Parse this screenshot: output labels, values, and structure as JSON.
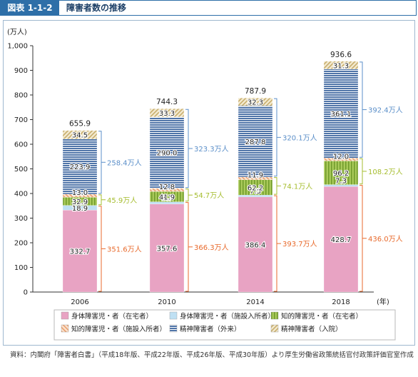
{
  "header": {
    "badge": "図表 1-1-2",
    "title": "障害者数の推移"
  },
  "colors": {
    "physical_home": "#e8a3c3",
    "physical_facility": "#bfe0f3",
    "intellectual_home": "#8fb640",
    "intellectual_facility": "#e8a070",
    "mental_outpatient": "#4f74a8",
    "mental_inpatient": "#d7c28e",
    "bracket_physical": "#e86a2c",
    "bracket_intellectual": "#a6bd2f",
    "bracket_mental": "#5b8fc9"
  },
  "chart_data": {
    "type": "bar",
    "stacked": true,
    "unit_label": "(万人)",
    "year_label": "(年)",
    "categories": [
      "2006",
      "2010",
      "2014",
      "2018"
    ],
    "ylim": [
      0,
      1000
    ],
    "yticks": [
      "0",
      "100",
      "200",
      "300",
      "400",
      "500",
      "600",
      "700",
      "800",
      "900",
      "1,000"
    ],
    "series": [
      {
        "key": "physical_home",
        "name": "身体障害児・者（在宅者）",
        "values": [
          332.7,
          357.6,
          386.4,
          428.7
        ],
        "labels": [
          "332.7",
          "357.6",
          "386.4",
          "428.7"
        ]
      },
      {
        "key": "physical_facility",
        "name": "身体障害児・者（施設入所者）",
        "values": [
          18.9,
          8.7,
          7.3,
          7.3
        ],
        "labels": [
          "18.9",
          "8.7",
          "7.3",
          "7.3"
        ]
      },
      {
        "key": "intellectual_home",
        "name": "知的障害児・者（在宅者）",
        "values": [
          32.9,
          41.9,
          62.2,
          96.2
        ],
        "labels": [
          "32.9",
          "41.9",
          "62.2",
          "96.2"
        ]
      },
      {
        "key": "intellectual_facility",
        "name": "知的障害児・者（施設入所者）",
        "values": [
          13.0,
          12.8,
          11.9,
          12.0
        ],
        "labels": [
          "13.0",
          "12.8",
          "11.9",
          "12.0"
        ]
      },
      {
        "key": "mental_outpatient",
        "name": "精神障害者（外来）",
        "values": [
          223.9,
          290.0,
          287.8,
          361.1
        ],
        "labels": [
          "223.9",
          "290.0",
          "287.8",
          "361.1"
        ]
      },
      {
        "key": "mental_inpatient",
        "name": "精神障害者（入院）",
        "values": [
          34.5,
          33.3,
          32.3,
          31.3
        ],
        "labels": [
          "34.5",
          "33.3",
          "32.3",
          "31.3"
        ]
      }
    ],
    "totals": [
      "655.9",
      "744.3",
      "787.9",
      "936.6"
    ],
    "group_totals": {
      "physical": [
        "351.6万人",
        "366.3万人",
        "393.7万人",
        "436.0万人"
      ],
      "intellectual": [
        "45.9万人",
        "54.7万人",
        "74.1万人",
        "108.2万人"
      ],
      "mental": [
        "258.4万人",
        "323.3万人",
        "320.1万人",
        "392.4万人"
      ]
    },
    "legend_position": "bottom"
  },
  "source": "資料：内閣府「障害者白書」（平成18年版、平成22年版、平成26年版、平成30年版）より厚生労働省政策統括官付政策評価官室作成"
}
